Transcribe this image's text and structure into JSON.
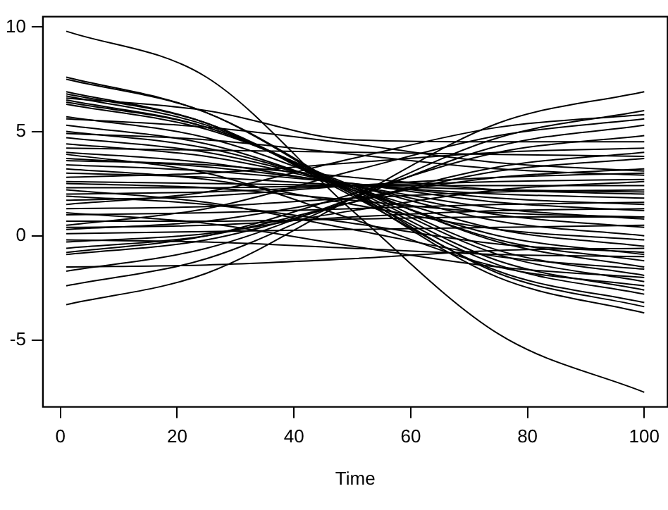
{
  "chart_data": {
    "type": "line",
    "xlabel": "Time",
    "x": [
      1,
      25,
      50,
      75,
      100
    ],
    "xlim": [
      -3,
      104
    ],
    "ylim": [
      -8.2,
      10.5
    ],
    "xticks": [
      0,
      20,
      40,
      60,
      80,
      100
    ],
    "yticks": [
      -5,
      0,
      5,
      10
    ],
    "line_style": "solid",
    "series": [
      {
        "color": "#000000",
        "values": [
          9.8,
          7.6,
          1.2,
          -4.7,
          -7.5
        ]
      },
      {
        "color": "#000000",
        "values": [
          -3.3,
          -1.8,
          1.8,
          5.4,
          6.9
        ]
      },
      {
        "color": "#000000",
        "values": [
          -2.4,
          -1.1,
          1.8,
          4.7,
          6.0
        ]
      },
      {
        "color": "#000000",
        "values": [
          -1.5,
          -1.4,
          -1.1,
          -0.7,
          -0.6
        ]
      },
      {
        "color": "#000000",
        "values": [
          7.6,
          5.9,
          2.0,
          -2.0,
          -3.7
        ]
      },
      {
        "color": "#000000",
        "values": [
          7.5,
          5.9,
          2.1,
          -1.8,
          -3.4
        ]
      },
      {
        "color": "#000000",
        "values": [
          6.9,
          5.4,
          1.9,
          -1.7,
          -3.2
        ]
      },
      {
        "color": "#000000",
        "values": [
          6.8,
          5.4,
          2.0,
          -1.4,
          -2.8
        ]
      },
      {
        "color": "#000000",
        "values": [
          6.7,
          5.3,
          2.1,
          -1.2,
          -2.6
        ]
      },
      {
        "color": "#000000",
        "values": [
          6.5,
          5.2,
          2.2,
          -0.9,
          -2.2
        ]
      },
      {
        "color": "#000000",
        "values": [
          6.4,
          5.2,
          2.3,
          -0.7,
          -1.9
        ]
      },
      {
        "color": "#000000",
        "values": [
          6.3,
          5.1,
          2.4,
          -0.3,
          -1.5
        ]
      },
      {
        "color": "#000000",
        "values": [
          5.7,
          4.7,
          2.3,
          -0.2,
          -1.2
        ]
      },
      {
        "color": "#000000",
        "values": [
          5.3,
          4.4,
          2.2,
          0.0,
          -0.9
        ]
      },
      {
        "color": "#000000",
        "values": [
          5.0,
          4.2,
          2.3,
          0.3,
          -0.5
        ]
      },
      {
        "color": "#000000",
        "values": [
          4.7,
          4.0,
          2.4,
          0.7,
          0.0
        ]
      },
      {
        "color": "#000000",
        "values": [
          4.4,
          3.8,
          2.4,
          1.0,
          0.4
        ]
      },
      {
        "color": "#000000",
        "values": [
          4.0,
          3.5,
          2.4,
          1.3,
          0.8
        ]
      },
      {
        "color": "#000000",
        "values": [
          3.7,
          3.3,
          2.5,
          1.6,
          1.2
        ]
      },
      {
        "color": "#000000",
        "values": [
          3.4,
          3.1,
          2.5,
          1.8,
          1.5
        ]
      },
      {
        "color": "#000000",
        "values": [
          3.0,
          2.8,
          2.4,
          2.0,
          1.8
        ]
      },
      {
        "color": "#000000",
        "values": [
          2.6,
          2.5,
          2.4,
          2.2,
          2.1
        ]
      },
      {
        "color": "#000000",
        "values": [
          2.3,
          2.3,
          2.4,
          2.4,
          2.4
        ]
      },
      {
        "color": "#000000",
        "values": [
          2.0,
          2.1,
          2.4,
          2.6,
          2.7
        ]
      },
      {
        "color": "#000000",
        "values": [
          1.7,
          1.9,
          2.4,
          2.8,
          3.0
        ]
      },
      {
        "color": "#000000",
        "values": [
          1.3,
          1.4,
          1.8,
          2.1,
          2.2
        ]
      },
      {
        "color": "#000000",
        "values": [
          1.0,
          1.1,
          1.3,
          1.5,
          1.6
        ]
      },
      {
        "color": "#000000",
        "values": [
          0.7,
          0.7,
          0.8,
          0.9,
          0.9
        ]
      },
      {
        "color": "#000000",
        "values": [
          0.4,
          0.5,
          0.9,
          1.2,
          1.3
        ]
      },
      {
        "color": "#000000",
        "values": [
          0.1,
          0.2,
          0.3,
          0.4,
          0.5
        ]
      },
      {
        "color": "#000000",
        "values": [
          -0.3,
          0.1,
          1.2,
          2.2,
          2.6
        ]
      },
      {
        "color": "#000000",
        "values": [
          -0.6,
          0.0,
          1.6,
          3.1,
          3.7
        ]
      },
      {
        "color": "#000000",
        "values": [
          -0.9,
          -0.2,
          1.6,
          3.3,
          4.0
        ]
      },
      {
        "color": "#000000",
        "values": [
          -0.8,
          0.0,
          2.0,
          4.0,
          4.8
        ]
      },
      {
        "color": "#000000",
        "values": [
          -1.7,
          -0.6,
          1.8,
          4.3,
          5.3
        ]
      },
      {
        "color": "#000000",
        "values": [
          0.5,
          1.3,
          3.1,
          4.8,
          5.6
        ]
      },
      {
        "color": "#000000",
        "values": [
          1.5,
          2.1,
          3.7,
          5.2,
          5.8
        ]
      },
      {
        "color": "#000000",
        "values": [
          2.8,
          3.0,
          3.5,
          4.0,
          4.2
        ]
      },
      {
        "color": "#000000",
        "values": [
          3.2,
          2.7,
          1.5,
          0.3,
          -0.2
        ]
      },
      {
        "color": "#000000",
        "values": [
          4.9,
          4.6,
          3.9,
          3.2,
          2.9
        ]
      },
      {
        "color": "#000000",
        "values": [
          5.6,
          5.2,
          4.4,
          3.5,
          3.1
        ]
      },
      {
        "color": "#000000",
        "values": [
          2.2,
          1.6,
          0.3,
          -1.0,
          -1.6
        ]
      },
      {
        "color": "#000000",
        "values": [
          1.1,
          0.6,
          -0.5,
          -1.5,
          -2.0
        ]
      },
      {
        "color": "#000000",
        "values": [
          -0.2,
          -0.3,
          -0.6,
          -0.9,
          -1.0
        ]
      },
      {
        "color": "#000000",
        "values": [
          3.9,
          3.0,
          0.8,
          -1.5,
          -2.4
        ]
      },
      {
        "color": "#000000",
        "values": [
          6.6,
          6.0,
          4.6,
          4.5,
          4.5
        ]
      },
      {
        "color": "#000000",
        "values": [
          4.2,
          4.1,
          4.0,
          3.9,
          3.8
        ]
      },
      {
        "color": "#000000",
        "values": [
          2.5,
          2.3,
          1.7,
          1.1,
          0.9
        ]
      },
      {
        "color": "#000000",
        "values": [
          1.9,
          1.5,
          0.6,
          -0.4,
          -0.8
        ]
      },
      {
        "color": "#000000",
        "values": [
          0.3,
          0.7,
          1.8,
          2.8,
          3.2
        ]
      },
      {
        "color": "#000000",
        "values": [
          3.6,
          3.4,
          2.8,
          2.2,
          2.0
        ]
      }
    ]
  }
}
